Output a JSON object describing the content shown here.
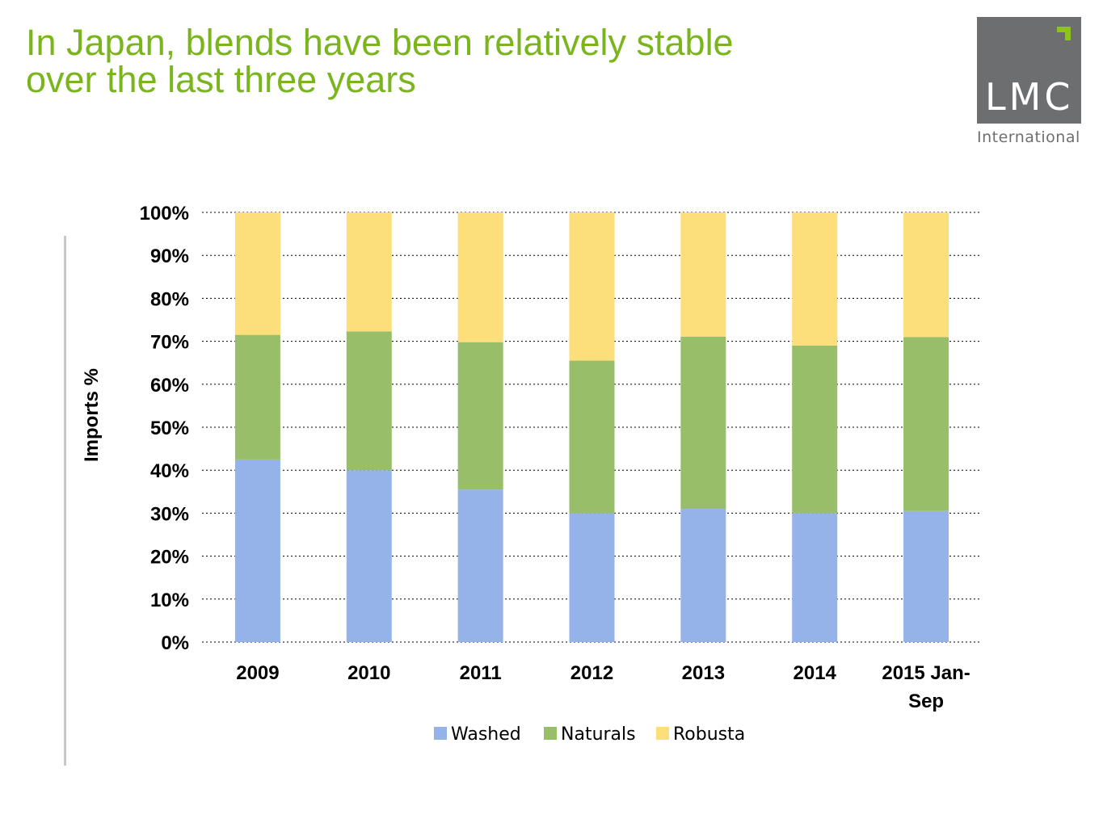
{
  "slide": {
    "title_line1": "In Japan, blends have been relatively stable",
    "title_line2": "over the last three years"
  },
  "logo": {
    "letters": "LMC",
    "subtitle": "International",
    "box_color": "#6d6e70",
    "accent_color": "#8dc21f"
  },
  "colors": {
    "title": "#7ab51d",
    "gridline": "#000000"
  },
  "chart_data": {
    "type": "bar",
    "stacked": true,
    "categories": [
      "2009",
      "2010",
      "2011",
      "2012",
      "2013",
      "2014",
      "2015 Jan-Sep"
    ],
    "category_lines": [
      [
        "2009"
      ],
      [
        "2010"
      ],
      [
        "2011"
      ],
      [
        "2012"
      ],
      [
        "2013"
      ],
      [
        "2014"
      ],
      [
        "2015 Jan-",
        "Sep"
      ]
    ],
    "series": [
      {
        "name": "Washed",
        "color": "#95b3e8",
        "values": [
          42.5,
          40,
          35.5,
          30,
          31,
          30,
          30.5
        ]
      },
      {
        "name": "Naturals",
        "color": "#98be6a",
        "values": [
          29,
          32.3,
          34.3,
          35.5,
          40.1,
          39,
          40.5
        ]
      },
      {
        "name": "Robusta",
        "color": "#fcde7a",
        "values": [
          28.5,
          27.7,
          30.2,
          34.5,
          28.9,
          31,
          29
        ]
      }
    ],
    "ylabel": "Imports %",
    "xlabel": "",
    "ylim": [
      0,
      100
    ],
    "yticks": [
      "0%",
      "10%",
      "20%",
      "30%",
      "40%",
      "50%",
      "60%",
      "70%",
      "80%",
      "90%",
      "100%"
    ],
    "grid": "horizontal dotted",
    "legend_position": "bottom"
  }
}
